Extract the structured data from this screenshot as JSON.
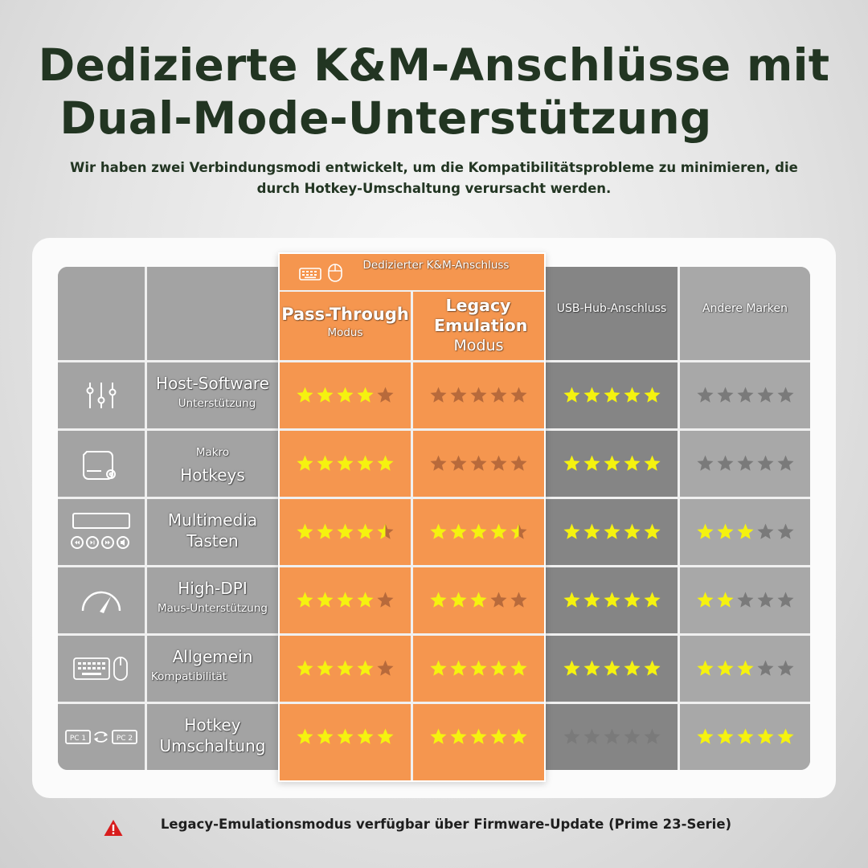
{
  "title": {
    "line1": "Dedizierte K&M-Anschlüsse mit",
    "line2": "Dual-Mode-Unterstützung"
  },
  "subtitle": "Wir haben zwei Verbindungsmodi entwickelt, um die Kompatibilitätsprobleme zu minimieren, die durch Hotkey-Umschaltung verursacht werden.",
  "table": {
    "group_header": "Dedizierter K&M-Anschluss",
    "columns": [
      {
        "title": "Pass-Through",
        "subtitle": "Modus"
      },
      {
        "title": "Legacy Emulation",
        "subtitle": "Modus"
      },
      {
        "title": "USB-Hub-Anschluss",
        "subtitle": ""
      },
      {
        "title": "Andere Marken",
        "subtitle": ""
      }
    ],
    "rows": [
      {
        "icon": "sliders-icon",
        "label_top": "Host-Software",
        "label_bottom": "Unterstützung",
        "ratings": [
          4,
          0,
          5,
          0
        ]
      },
      {
        "icon": "macro-keyboard-icon",
        "label_top": "Makro",
        "label_bottom": "Hotkeys",
        "ratings": [
          5,
          0,
          5,
          0
        ]
      },
      {
        "icon": "media-keys-icon",
        "label_top": "Multimedia",
        "label_bottom": "Tasten",
        "ratings": [
          4.5,
          4.5,
          5,
          3
        ]
      },
      {
        "icon": "speedometer-icon",
        "label_top": "High-DPI",
        "label_bottom": "Maus-Unterstützung",
        "ratings": [
          4,
          3,
          5,
          2
        ]
      },
      {
        "icon": "keyboard-mouse-icon",
        "label_top": "Allgemein",
        "label_bottom": "Kompatibilität",
        "ratings": [
          4,
          5,
          5,
          3
        ]
      },
      {
        "icon": "pc-switch-icon",
        "label_top": "Hotkey",
        "label_bottom": "Umschaltung",
        "ratings": [
          5,
          5,
          0,
          5
        ]
      }
    ],
    "pc_labels": [
      "PC 1",
      "PC 2"
    ]
  },
  "footer": "Legacy-Emulationsmodus verfügbar über Firmware-Update (Prime 23-Serie)",
  "colors": {
    "title": "#223522",
    "orange": "#f5964f",
    "star_on": "#f5f20f",
    "star_off_orange": "#b86a3b",
    "star_off_gray": "#7a7a7a",
    "warning": "#d81c1c"
  }
}
